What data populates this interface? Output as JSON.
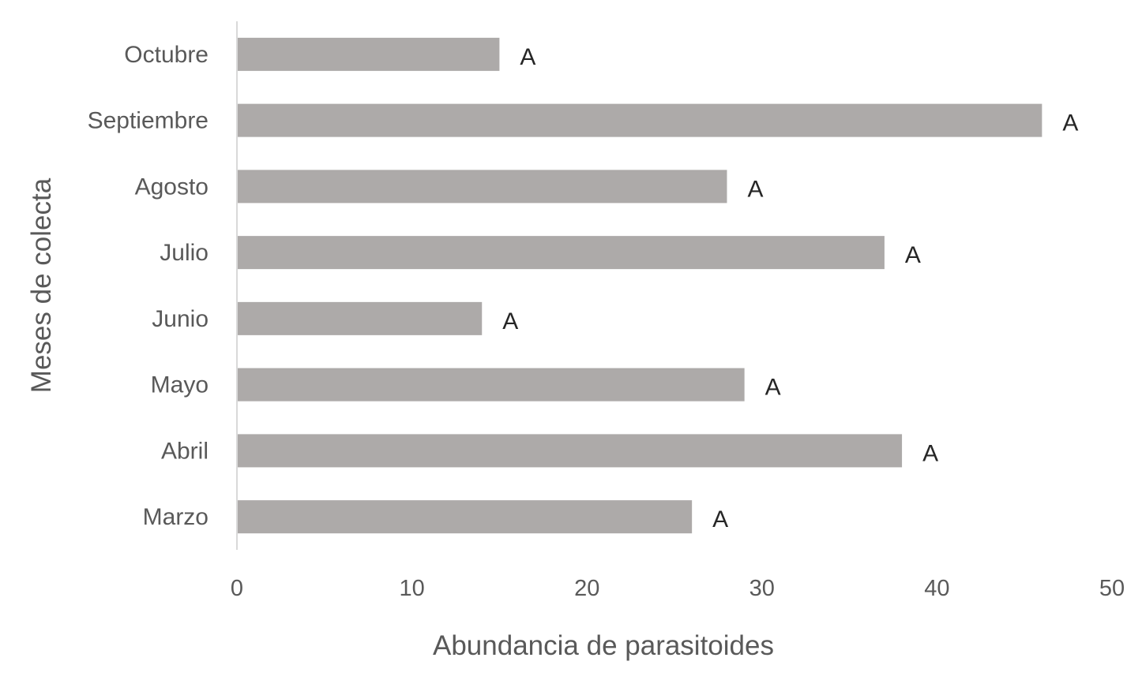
{
  "chart_data": {
    "type": "bar",
    "orientation": "horizontal",
    "categories": [
      "Marzo",
      "Abril",
      "Mayo",
      "Junio",
      "Julio",
      "Agosto",
      "Septiembre",
      "Octubre"
    ],
    "values": [
      26,
      38,
      29,
      14,
      37,
      28,
      46,
      15
    ],
    "data_labels": [
      "A",
      "A",
      "A",
      "A",
      "A",
      "A",
      "A",
      "A"
    ],
    "xlabel": "Abundancia de parasitoides",
    "ylabel": "Meses de colecta",
    "xlim": [
      0,
      50
    ],
    "x_ticks": [
      "0",
      "10",
      "20",
      "30",
      "40",
      "50"
    ],
    "grid": false,
    "legend": "none",
    "bar_color": "#ADAAA9"
  }
}
